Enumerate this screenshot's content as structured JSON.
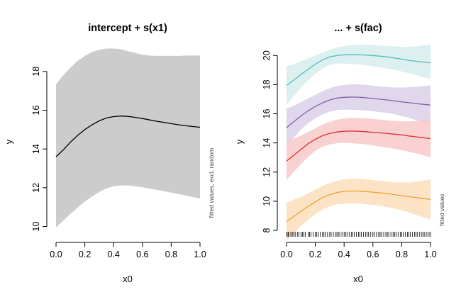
{
  "chart_data": [
    {
      "type": "line",
      "title": "intercept + s(x1)",
      "xlabel": "x0",
      "ylabel": "y",
      "side_note": "fitted values, excl. random",
      "xlim": [
        0,
        1
      ],
      "ylim": [
        9.8,
        19.2
      ],
      "xticks": [
        "0.0",
        "0.2",
        "0.4",
        "0.6",
        "0.8",
        "1.0"
      ],
      "yticks": [
        "10",
        "12",
        "14",
        "16",
        "18"
      ],
      "band_color": "#cccccc",
      "line_color": "#000000",
      "x": [
        0.0,
        0.05,
        0.1,
        0.15,
        0.2,
        0.25,
        0.3,
        0.35,
        0.4,
        0.45,
        0.5,
        0.55,
        0.6,
        0.65,
        0.7,
        0.75,
        0.8,
        0.85,
        0.9,
        0.95,
        1.0
      ],
      "fit": [
        13.6,
        13.95,
        14.35,
        14.7,
        15.0,
        15.25,
        15.45,
        15.6,
        15.67,
        15.7,
        15.68,
        15.63,
        15.57,
        15.5,
        15.43,
        15.37,
        15.31,
        15.25,
        15.2,
        15.16,
        15.12
      ],
      "upper": [
        17.35,
        17.8,
        18.2,
        18.55,
        18.8,
        19.0,
        19.12,
        19.18,
        19.18,
        19.15,
        19.05,
        18.95,
        18.87,
        18.82,
        18.8,
        18.8,
        18.8,
        18.8,
        18.82,
        18.82,
        18.82
      ],
      "lower": [
        9.95,
        10.3,
        10.65,
        10.98,
        11.28,
        11.55,
        11.78,
        11.97,
        12.08,
        12.12,
        12.12,
        12.08,
        12.02,
        11.96,
        11.89,
        11.82,
        11.75,
        11.68,
        11.6,
        11.52,
        11.45
      ]
    },
    {
      "type": "line",
      "title": "... + s(fac)",
      "xlabel": "x0",
      "ylabel": "y",
      "side_note": "fitted values",
      "xlim": [
        0,
        1
      ],
      "ylim": [
        8,
        20.5
      ],
      "xticks": [
        "0.0",
        "0.2",
        "0.4",
        "0.6",
        "0.8",
        "1.0"
      ],
      "yticks": [
        "8",
        "10",
        "12",
        "14",
        "16",
        "18",
        "20"
      ],
      "x": [
        0.0,
        0.05,
        0.1,
        0.15,
        0.2,
        0.25,
        0.3,
        0.35,
        0.4,
        0.45,
        0.5,
        0.55,
        0.6,
        0.65,
        0.7,
        0.75,
        0.8,
        0.85,
        0.9,
        0.95,
        1.0
      ],
      "series": [
        {
          "color": "#4fbfbf",
          "band_color": "#d8eeee",
          "fit": [
            17.95,
            18.3,
            18.7,
            19.05,
            19.4,
            19.7,
            19.9,
            20.0,
            20.05,
            20.05,
            20.05,
            20.03,
            20.0,
            19.95,
            19.9,
            19.83,
            19.75,
            19.67,
            19.6,
            19.55,
            19.5
          ],
          "upper": [
            19.25,
            19.4,
            19.6,
            19.8,
            20.0,
            20.2,
            20.4,
            20.55,
            20.65,
            20.72,
            20.75,
            20.75,
            20.72,
            20.68,
            20.65,
            20.62,
            20.6,
            20.6,
            20.62,
            20.7,
            20.75
          ],
          "lower": [
            16.6,
            17.2,
            17.8,
            18.3,
            18.75,
            19.1,
            19.35,
            19.45,
            19.45,
            19.42,
            19.38,
            19.32,
            19.25,
            19.18,
            19.1,
            19.0,
            18.9,
            18.78,
            18.65,
            18.5,
            18.4
          ]
        },
        {
          "color": "#8060a8",
          "band_color": "#ddd3ea",
          "fit": [
            15.05,
            15.45,
            15.85,
            16.2,
            16.5,
            16.75,
            16.95,
            17.08,
            17.13,
            17.15,
            17.14,
            17.1,
            17.05,
            17.0,
            16.95,
            16.88,
            16.82,
            16.76,
            16.7,
            16.65,
            16.6
          ],
          "upper": [
            16.35,
            16.55,
            16.8,
            17.05,
            17.3,
            17.55,
            17.75,
            17.9,
            17.98,
            18.02,
            18.02,
            17.98,
            17.93,
            17.88,
            17.83,
            17.8,
            17.8,
            17.82,
            17.85,
            17.9,
            17.95
          ],
          "lower": [
            13.75,
            14.35,
            14.9,
            15.35,
            15.7,
            15.95,
            16.15,
            16.26,
            16.28,
            16.28,
            16.26,
            16.22,
            16.17,
            16.12,
            16.05,
            15.97,
            15.85,
            15.72,
            15.57,
            15.42,
            15.25
          ]
        },
        {
          "color": "#e03030",
          "band_color": "#f8cccc",
          "fit": [
            12.75,
            13.15,
            13.55,
            13.95,
            14.25,
            14.5,
            14.65,
            14.75,
            14.8,
            14.82,
            14.8,
            14.77,
            14.73,
            14.69,
            14.65,
            14.6,
            14.55,
            14.48,
            14.42,
            14.35,
            14.3
          ],
          "upper": [
            14.1,
            14.3,
            14.5,
            14.75,
            15.0,
            15.25,
            15.45,
            15.6,
            15.68,
            15.72,
            15.72,
            15.7,
            15.65,
            15.6,
            15.55,
            15.5,
            15.48,
            15.48,
            15.5,
            15.55,
            15.6
          ],
          "lower": [
            11.45,
            12.0,
            12.55,
            13.05,
            13.45,
            13.75,
            13.9,
            13.98,
            14.0,
            13.98,
            13.95,
            13.9,
            13.83,
            13.75,
            13.68,
            13.6,
            13.5,
            13.4,
            13.28,
            13.15,
            13.0
          ]
        },
        {
          "color": "#f0a030",
          "band_color": "#fde0c0",
          "fit": [
            8.6,
            8.95,
            9.3,
            9.65,
            9.95,
            10.25,
            10.45,
            10.6,
            10.67,
            10.7,
            10.7,
            10.66,
            10.62,
            10.57,
            10.52,
            10.45,
            10.38,
            10.31,
            10.25,
            10.18,
            10.12
          ],
          "upper": [
            9.9,
            10.1,
            10.3,
            10.55,
            10.8,
            11.05,
            11.25,
            11.4,
            11.5,
            11.55,
            11.55,
            11.5,
            11.45,
            11.4,
            11.35,
            11.3,
            11.28,
            11.3,
            11.35,
            11.42,
            11.5
          ],
          "lower": [
            7.3,
            7.8,
            8.3,
            8.75,
            9.1,
            9.45,
            9.65,
            9.8,
            9.84,
            9.85,
            9.83,
            9.79,
            9.74,
            9.68,
            9.6,
            9.5,
            9.38,
            9.22,
            9.06,
            8.9,
            8.75
          ]
        }
      ],
      "rug": [
        0.0,
        0.01,
        0.015,
        0.03,
        0.04,
        0.05,
        0.06,
        0.075,
        0.085,
        0.1,
        0.11,
        0.12,
        0.13,
        0.15,
        0.16,
        0.17,
        0.185,
        0.2,
        0.21,
        0.22,
        0.235,
        0.25,
        0.26,
        0.27,
        0.285,
        0.3,
        0.31,
        0.325,
        0.34,
        0.35,
        0.36,
        0.37,
        0.385,
        0.4,
        0.41,
        0.42,
        0.435,
        0.45,
        0.46,
        0.47,
        0.485,
        0.5,
        0.51,
        0.52,
        0.535,
        0.55,
        0.56,
        0.57,
        0.585,
        0.6,
        0.61,
        0.625,
        0.64,
        0.65,
        0.66,
        0.675,
        0.69,
        0.7,
        0.71,
        0.725,
        0.74,
        0.75,
        0.76,
        0.775,
        0.79,
        0.8,
        0.81,
        0.825,
        0.84,
        0.85,
        0.86,
        0.875,
        0.89,
        0.9,
        0.91,
        0.925,
        0.94,
        0.95,
        0.96,
        0.975,
        0.99,
        1.0
      ]
    }
  ]
}
